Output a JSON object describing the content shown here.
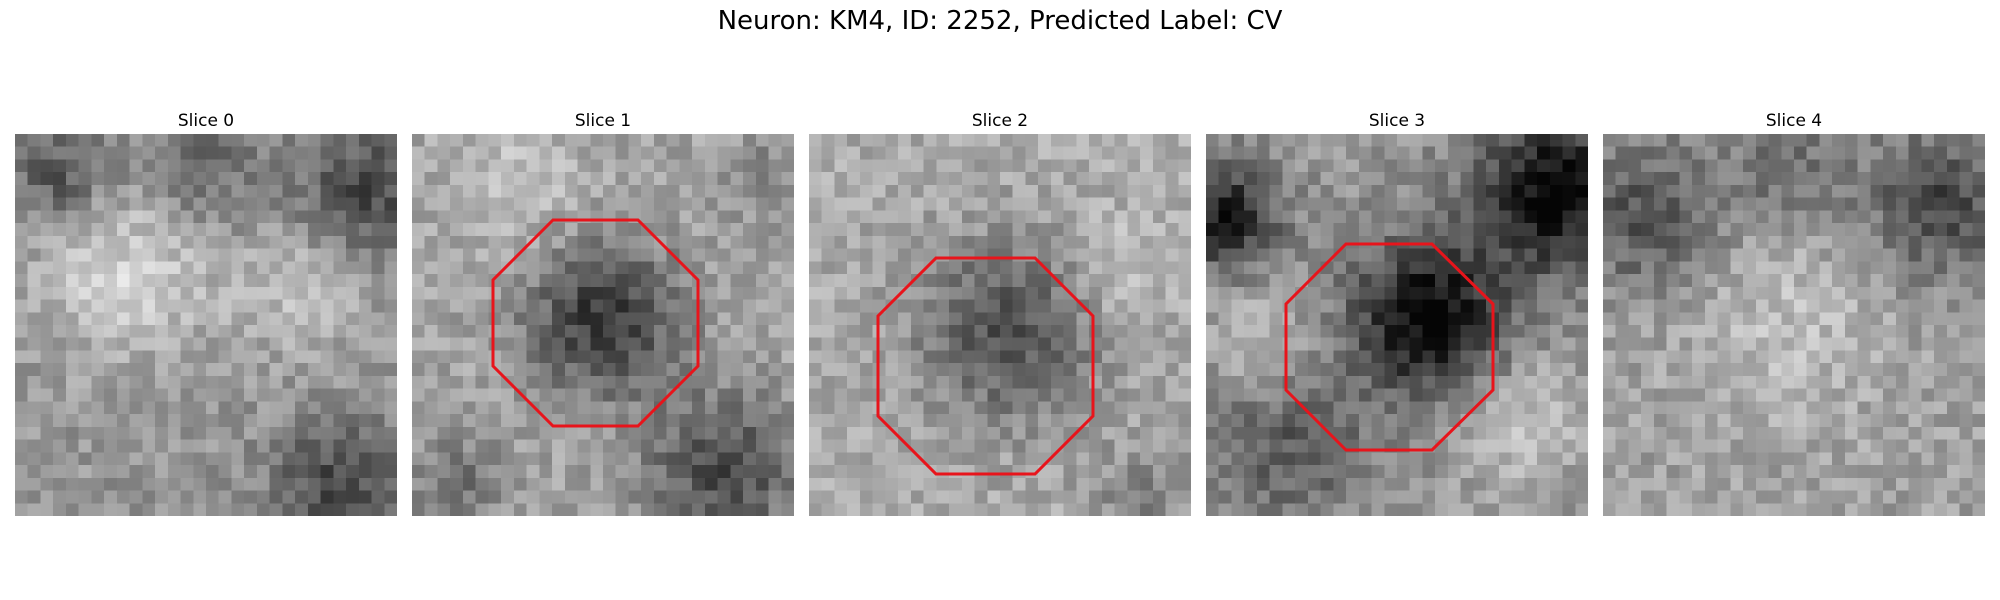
{
  "figure": {
    "title": "Neuron: KM4, ID: 2252, Predicted Label: CV"
  },
  "panels": [
    {
      "title": "Slice 0",
      "roi": null
    },
    {
      "title": "Slice 1",
      "roi": {
        "shape": "octagon",
        "color": "#e8141b"
      }
    },
    {
      "title": "Slice 2",
      "roi": {
        "shape": "octagon",
        "color": "#e8141b"
      }
    },
    {
      "title": "Slice 3",
      "roi": {
        "shape": "octagon",
        "color": "#e8141b"
      }
    },
    {
      "title": "Slice 4",
      "roi": null
    }
  ],
  "colormap": "gray"
}
